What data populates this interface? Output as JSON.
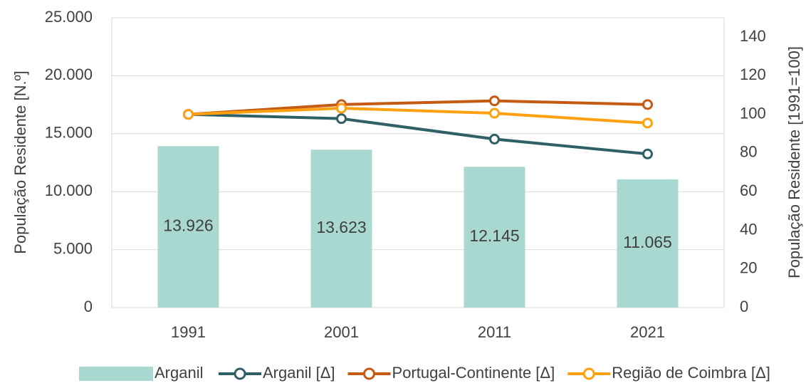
{
  "chart_data": {
    "type": "bar_line",
    "y_label": "População Residente [N.º]",
    "y2_label": "População Residente [1991=100]",
    "categories": [
      "1991",
      "2001",
      "2011",
      "2021"
    ],
    "bars": {
      "name": "Arganil",
      "color": "#a8d8d0",
      "values": [
        13926,
        13623,
        12145,
        11065
      ],
      "value_labels": [
        "13.926",
        "13.623",
        "12.145",
        "11.065"
      ]
    },
    "series": [
      {
        "name": "Arganil [Δ]",
        "color": "#2e6066",
        "axis": "y2",
        "values": [
          100,
          97.8,
          87.2,
          79.5
        ]
      },
      {
        "name": "Portugal-Continente [Δ]",
        "color": "#c55a11",
        "axis": "y2",
        "values": [
          100,
          105.1,
          107.0,
          105.1
        ]
      },
      {
        "name": "Região de Coimbra [Δ]",
        "color": "#ffa010",
        "axis": "y2",
        "values": [
          100,
          103.2,
          100.6,
          95.5
        ]
      }
    ],
    "ylim": [
      0,
      25000
    ],
    "yticks": [
      0,
      {
        "value": 5000,
        "label": "5.000"
      },
      {
        "value": 10000,
        "label": "10.000"
      },
      {
        "value": 15000,
        "label": "15.000"
      },
      {
        "value": 20000,
        "label": "20.000"
      },
      {
        "value": 25000,
        "label": "25.000"
      }
    ],
    "y2lim": [
      0,
      150
    ],
    "y2ticks": [
      0,
      20,
      40,
      60,
      80,
      100,
      120,
      140
    ],
    "grid": true
  }
}
